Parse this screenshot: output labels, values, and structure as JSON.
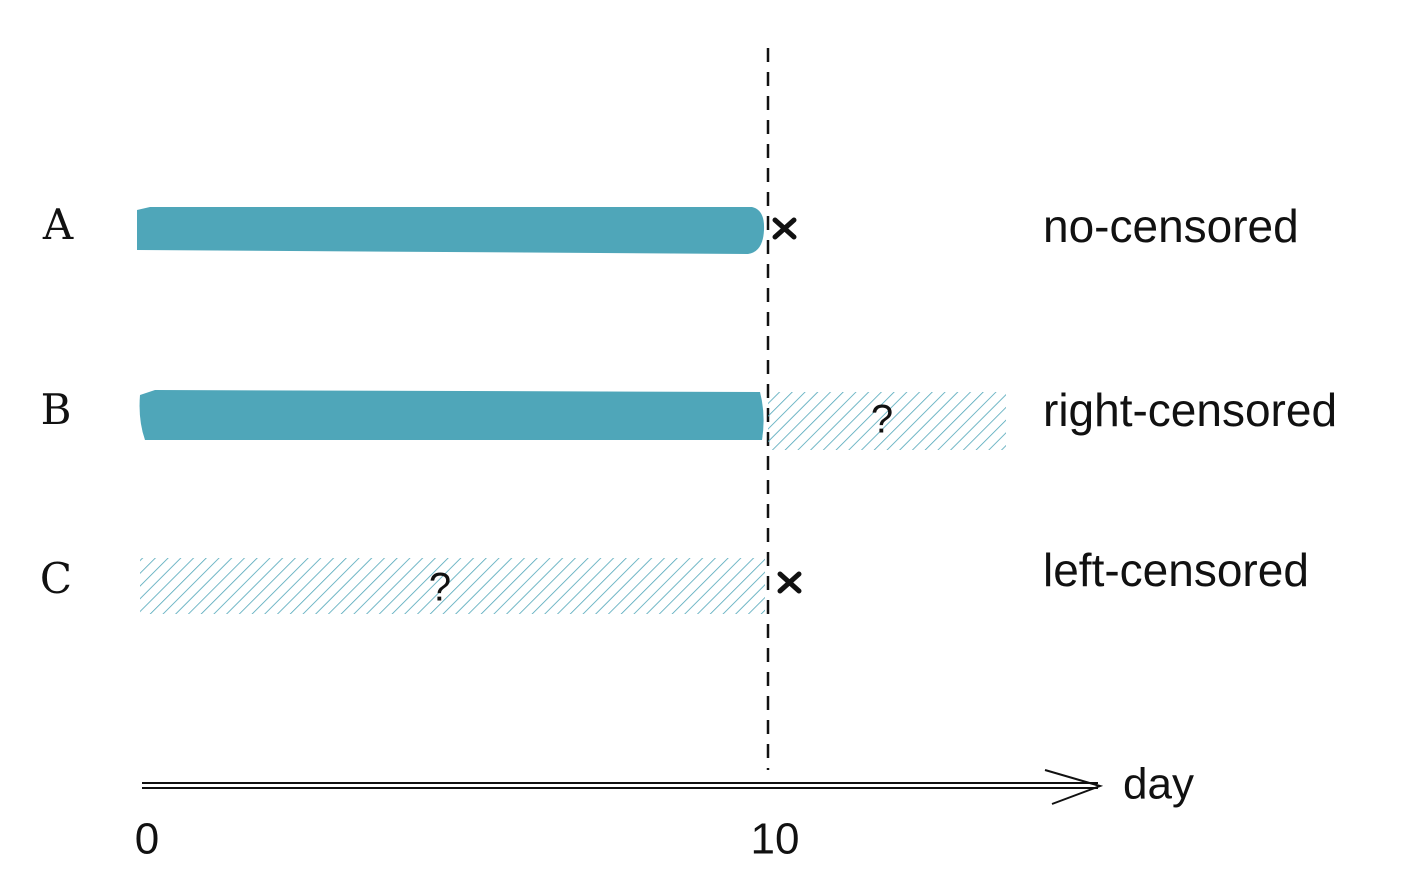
{
  "rows": [
    {
      "label": "A",
      "status": "no-censored"
    },
    {
      "label": "B",
      "status": "right-censored",
      "unknown": "?"
    },
    {
      "label": "C",
      "status": "left-censored",
      "unknown": "?"
    }
  ],
  "axis": {
    "label": "day",
    "ticks": [
      "0",
      "10"
    ]
  }
}
